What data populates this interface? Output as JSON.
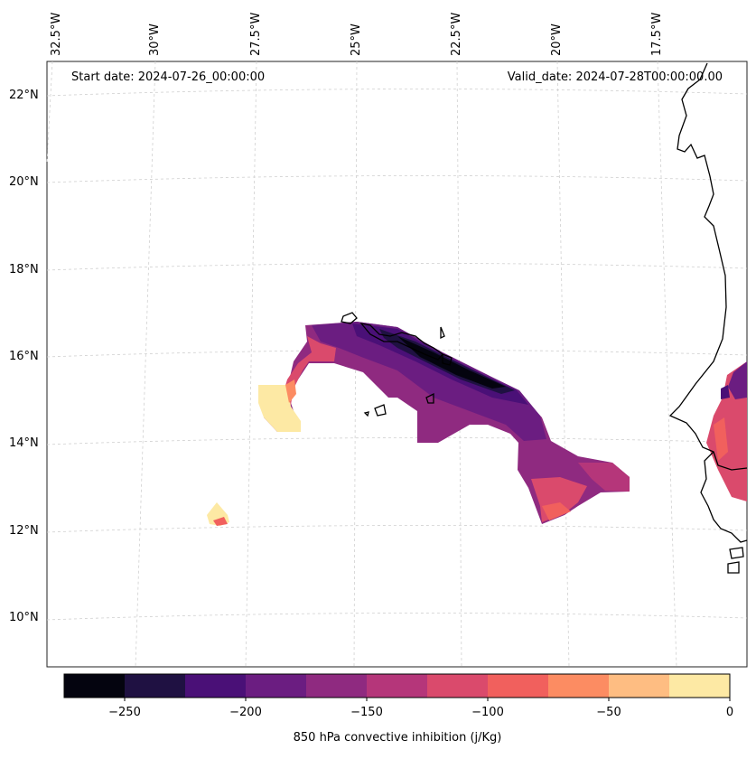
{
  "map": {
    "start_date_text": "Start date: 2024-07-26_00:00:00",
    "valid_date_text": "Valid_date: 2024-07-28T00:00:00.00",
    "longitude_labels": [
      "32.5°W",
      "30°W",
      "27.5°W",
      "25°W",
      "22.5°W",
      "20°W",
      "17.5°W"
    ],
    "latitude_labels": [
      "22°N",
      "20°N",
      "18°N",
      "16°N",
      "14°N",
      "12°N",
      "10°N"
    ],
    "colorbar": {
      "label": "850 hPa convective inhibition (j/Kg)",
      "ticks": [
        "−250",
        "−200",
        "−150",
        "−100",
        "−50",
        "0"
      ],
      "levels": [
        -275,
        -250,
        -225,
        -200,
        -175,
        -150,
        -125,
        -100,
        -75,
        -50,
        -25,
        0
      ],
      "colors": [
        "#04040f",
        "#1f1142",
        "#4a1077",
        "#6b1d81",
        "#8f2a80",
        "#b5367a",
        "#da4a6c",
        "#f1605d",
        "#fc8c62",
        "#febd82",
        "#fde9a4"
      ]
    },
    "colormap_name": "magma"
  }
}
